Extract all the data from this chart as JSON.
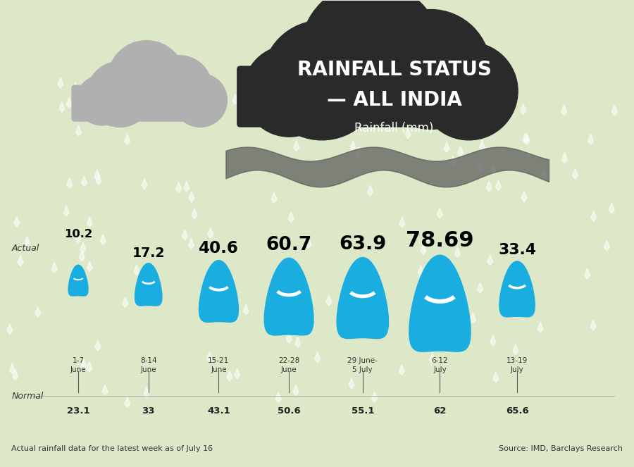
{
  "title_line1": "RAINFALL STATUS",
  "title_line2": "— ALL INDIA",
  "subtitle": "Rainfall (mm)",
  "bg_color": "#dde8c8",
  "drop_color": "#1aade0",
  "drop_highlight": "#ffffff",
  "periods": [
    "1-7\nJune",
    "8-14\nJune",
    "15-21\nJune",
    "22-28\nJune",
    "29 June-\n5 July",
    "6-12\nJuly",
    "13-19\nJuly"
  ],
  "actual": [
    10.2,
    17.2,
    40.6,
    60.7,
    63.9,
    78.69,
    33.4
  ],
  "normal": [
    23.1,
    33,
    43.1,
    50.6,
    55.1,
    62,
    65.6
  ],
  "actual_label": "Actual",
  "normal_label": "Normal",
  "footer_left": "Actual rainfall data for the latest week as of July 16",
  "footer_right": "Source: IMD, Barclays Research",
  "rain_color": "#c8d8a0",
  "drop_sizes": [
    0.4,
    0.55,
    0.8,
    1.0,
    1.05,
    1.25,
    0.72
  ]
}
